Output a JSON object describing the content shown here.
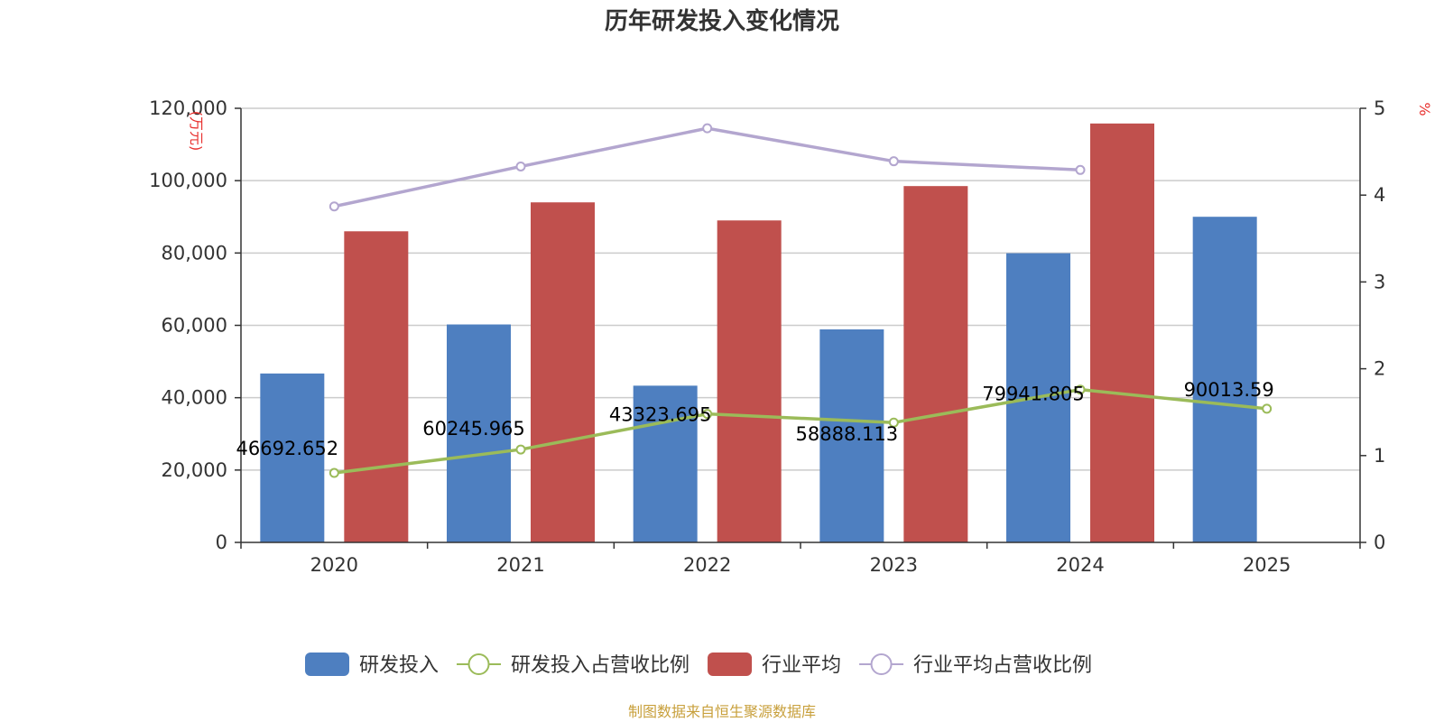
{
  "chart_data": {
    "type": "bar",
    "title": "历年研发投入变化情况",
    "categories": [
      "2020",
      "2021",
      "2022",
      "2023",
      "2024",
      "2025"
    ],
    "left_axis": {
      "unit": "(万元)",
      "range": [
        0,
        120000
      ],
      "ticks": [
        "0",
        "20,000",
        "40,000",
        "60,000",
        "80,000",
        "100,000",
        "120,000"
      ]
    },
    "right_axis": {
      "unit": "%",
      "range": [
        0,
        5
      ],
      "ticks": [
        "0",
        "1",
        "2",
        "3",
        "4",
        "5"
      ]
    },
    "grid": true,
    "legend_position": "bottom",
    "series": [
      {
        "name": "研发投入",
        "type": "bar",
        "axis": "left",
        "color": "#4e7fc0",
        "values": [
          46692.652,
          60245.965,
          43323.695,
          58888.113,
          79941.805,
          90013.59
        ],
        "labels": [
          "46692.652",
          "60245.965",
          "43323.695",
          "58888.113",
          "79941.805",
          "90013.59"
        ]
      },
      {
        "name": "研发投入占营收比例",
        "type": "line",
        "axis": "right",
        "color": "#9bbb59",
        "values": [
          0.8,
          1.07,
          1.48,
          1.38,
          1.76,
          1.54
        ]
      },
      {
        "name": "行业平均",
        "type": "bar",
        "axis": "left",
        "color": "#c0504d",
        "values": [
          86000,
          94000,
          89000,
          98500,
          115800,
          null
        ]
      },
      {
        "name": "行业平均占营收比例",
        "type": "line",
        "axis": "right",
        "color": "#b3a6cf",
        "values": [
          3.87,
          4.33,
          4.77,
          4.39,
          4.29,
          null
        ]
      }
    ]
  },
  "source": "制图数据来自恒生聚源数据库"
}
